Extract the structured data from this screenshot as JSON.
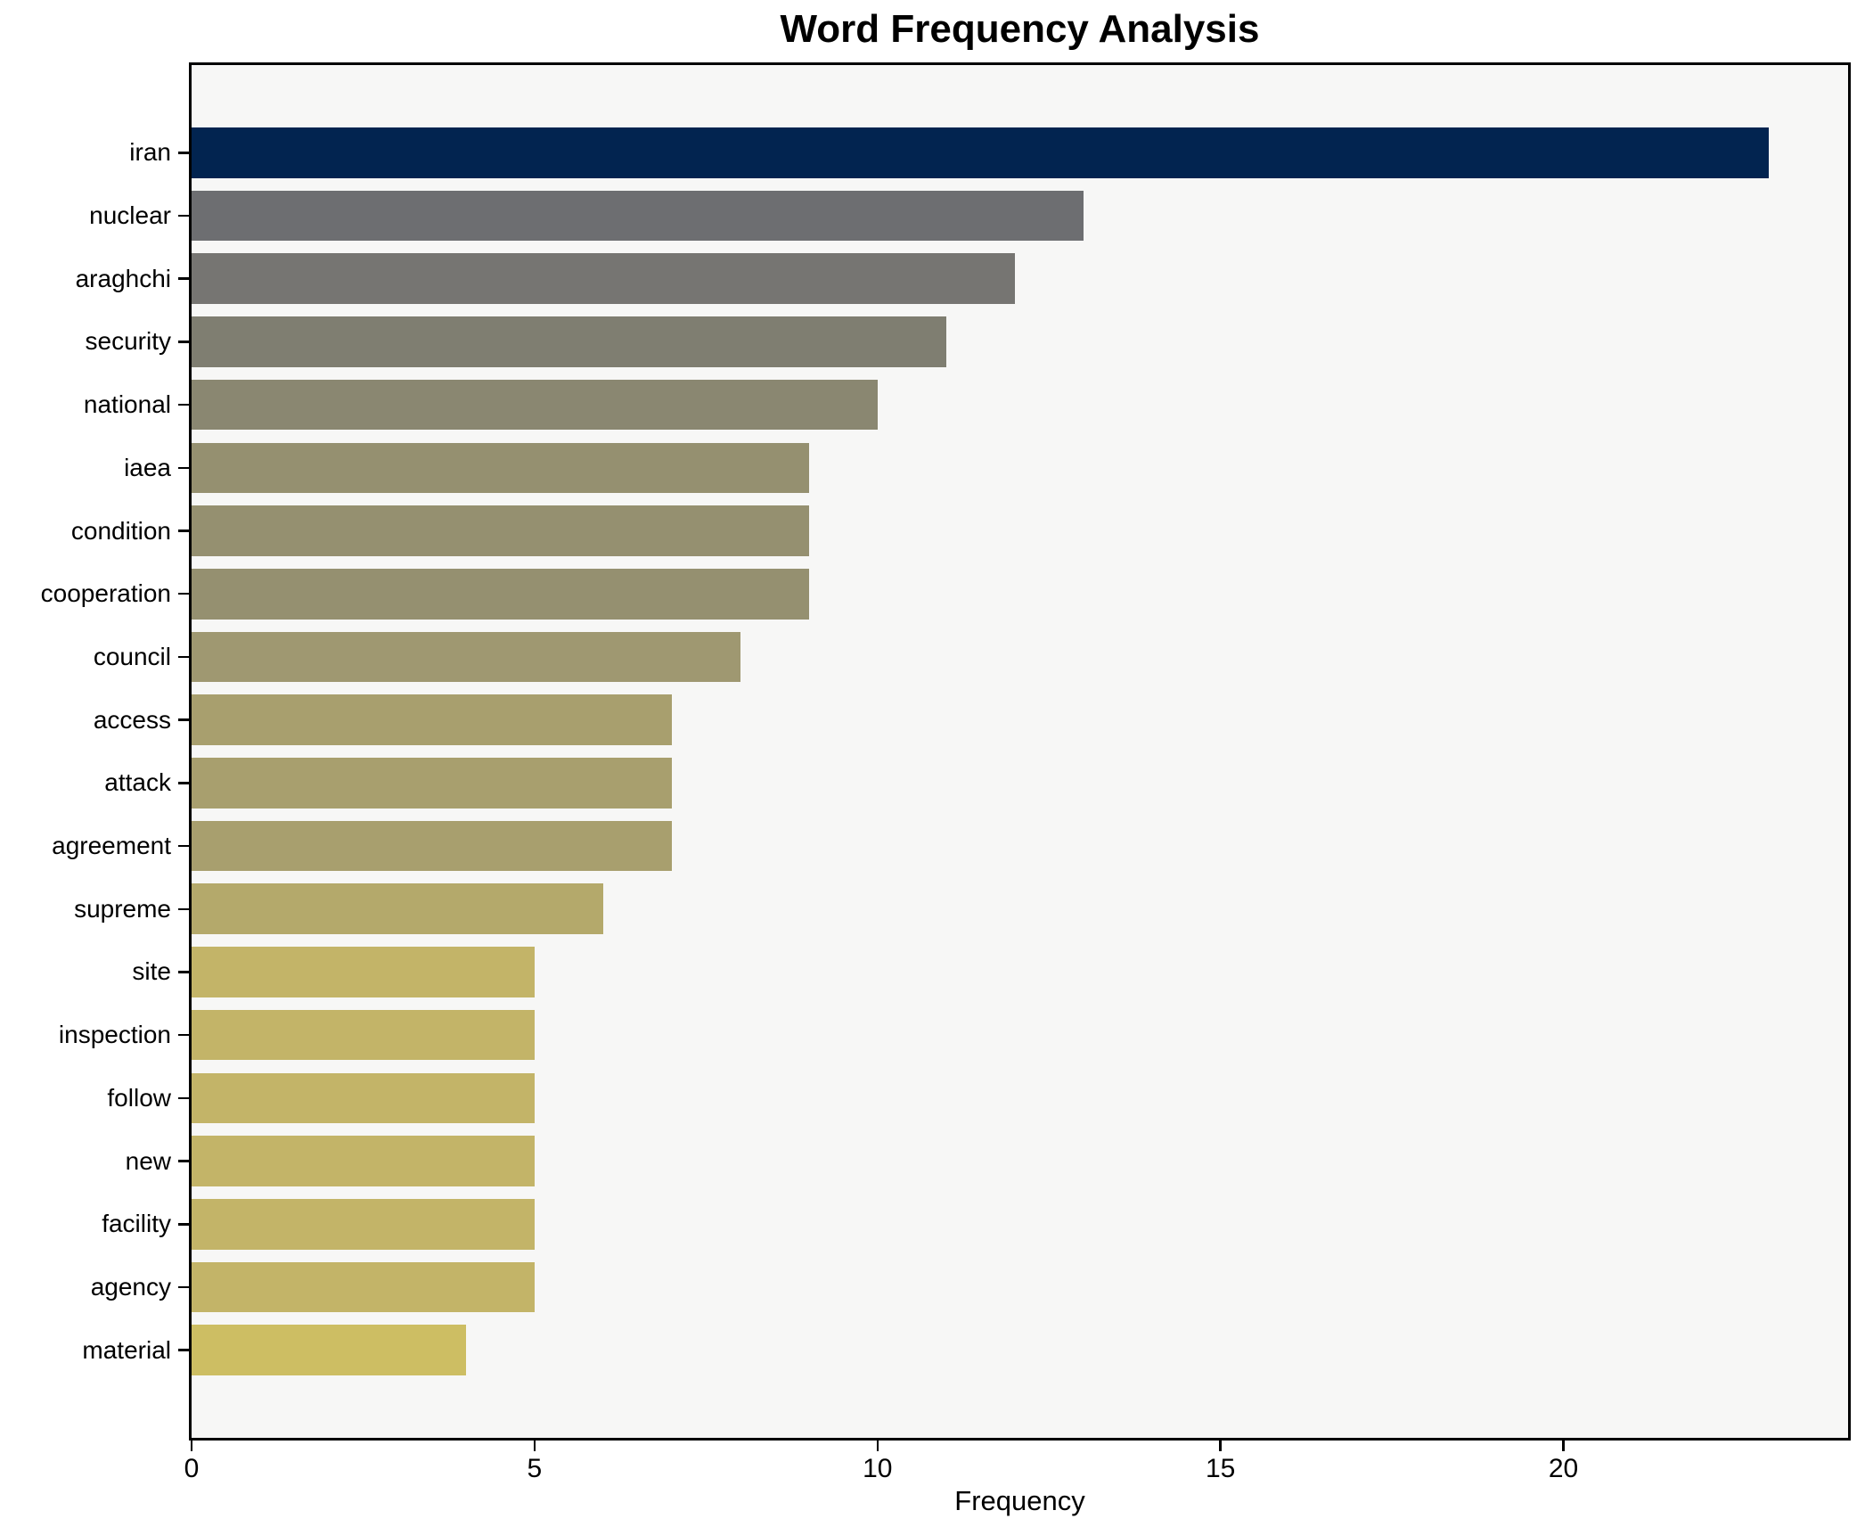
{
  "figure": {
    "background": "#ffffff",
    "plot_background": "#f7f7f6",
    "spine_color": "#000000"
  },
  "chart_data": {
    "type": "bar",
    "orientation": "horizontal",
    "title": "Word Frequency Analysis",
    "xlabel": "Frequency",
    "ylabel": "",
    "categories": [
      "iran",
      "nuclear",
      "araghchi",
      "security",
      "national",
      "iaea",
      "condition",
      "cooperation",
      "council",
      "access",
      "attack",
      "agreement",
      "supreme",
      "site",
      "inspection",
      "follow",
      "new",
      "facility",
      "agency",
      "material"
    ],
    "values": [
      23,
      13,
      12,
      11,
      10,
      9,
      9,
      9,
      8,
      7,
      7,
      7,
      6,
      5,
      5,
      5,
      5,
      5,
      5,
      4
    ],
    "bar_colors": [
      "#022450",
      "#6d6e71",
      "#767572",
      "#7f7e71",
      "#8a8771",
      "#959070",
      "#959070",
      "#959070",
      "#9f9871",
      "#a89f6e",
      "#a89f6e",
      "#a89f6e",
      "#b4a96b",
      "#c3b468",
      "#c3b468",
      "#c3b468",
      "#c3b468",
      "#c3b468",
      "#c3b468",
      "#cdbe63"
    ],
    "xlim": [
      0,
      24.15
    ],
    "xticks": [
      0,
      5,
      10,
      15,
      20
    ],
    "bar_height_fraction": 0.8,
    "grid": false,
    "legend": null,
    "colormap": "cividis"
  }
}
